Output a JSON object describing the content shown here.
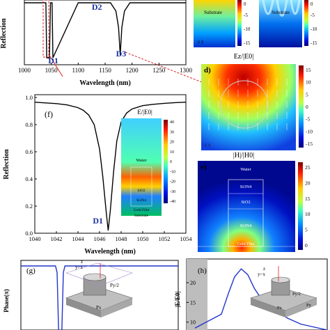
{
  "colors": {
    "curve": "#000000",
    "panel_a_marker": "#e02020",
    "label_blue": "#1a2fa0",
    "phase_curve": "#2233cc",
    "shade": "#bdbdbd",
    "substrate": "#8f8f8f"
  },
  "chart_data": [
    {
      "id": "a",
      "type": "line",
      "xlabel": "Wavelength (nm)",
      "ylabel": "Reflection",
      "xlim": [
        1000,
        1300
      ],
      "ylim": [
        0.0,
        1.0
      ],
      "xticks": [
        1000,
        1050,
        1100,
        1150,
        1200,
        1250,
        1300
      ],
      "yticks": [],
      "annotations": [
        {
          "text": "D1",
          "x": 1052
        },
        {
          "text": "D2",
          "x": 1133
        },
        {
          "text": "D3",
          "x": 1178
        }
      ],
      "x": [
        1000,
        1040,
        1041.5,
        1046.5,
        1048.5,
        1051.5,
        1053,
        1100,
        1160,
        1170,
        1175,
        1178,
        1181,
        1186,
        1196,
        1230,
        1300
      ],
      "y": [
        1.0,
        1.0,
        0.0,
        0.0,
        1.0,
        1.0,
        0.0,
        1.0,
        1.0,
        0.85,
        0.55,
        0.05,
        0.55,
        0.85,
        1.0,
        1.0,
        1.0
      ]
    },
    {
      "id": "f",
      "type": "line",
      "panel_label": "(f)",
      "xlabel": "Wavelength (nm)",
      "ylabel": "Reflection",
      "xlim": [
        1040,
        1054
      ],
      "ylim": [
        0.0,
        1.0
      ],
      "xticks": [
        1040,
        1042,
        1044,
        1046,
        1048,
        1050,
        1052,
        1054
      ],
      "yticks": [
        0.0,
        0.2,
        0.4,
        0.6,
        0.8,
        1.0
      ],
      "annotations": [
        {
          "text": "D1",
          "x": 1046.8,
          "y": 0.0
        }
      ],
      "x": [
        1040,
        1041,
        1042,
        1043,
        1044,
        1044.5,
        1045,
        1045.5,
        1046,
        1046.3,
        1046.6,
        1046.8,
        1047.0,
        1047.3,
        1047.6,
        1048,
        1048.5,
        1049,
        1050,
        1051,
        1052,
        1053,
        1054
      ],
      "y": [
        0.965,
        0.96,
        0.955,
        0.945,
        0.925,
        0.905,
        0.87,
        0.8,
        0.62,
        0.42,
        0.17,
        0.02,
        0.17,
        0.45,
        0.68,
        0.82,
        0.885,
        0.915,
        0.94,
        0.95,
        0.957,
        0.962,
        0.965
      ]
    },
    {
      "id": "g",
      "type": "line",
      "panel_label": "(g)",
      "ylabel": "Phase(π)",
      "x": [
        0,
        0.22,
        0.23,
        0.24,
        0.26,
        0.27,
        0.28,
        1.0
      ],
      "y": [
        1.0,
        1.0,
        0.9,
        0.0,
        0.0,
        0.9,
        1.0,
        1.0
      ]
    },
    {
      "id": "h",
      "type": "line",
      "panel_label": "(h)",
      "ylabel": "|E/E0|",
      "yticks": [
        10,
        15,
        20
      ],
      "ylim": [
        8,
        26
      ],
      "x": [
        0,
        0.2,
        0.25,
        0.3,
        0.35,
        0.4,
        0.45,
        0.5,
        0.6,
        0.7,
        0.8,
        1.0
      ],
      "y": [
        8.5,
        12,
        17,
        21.5,
        23.5,
        22,
        18.5,
        16,
        13,
        11,
        9.5,
        8
      ]
    }
  ],
  "maps": {
    "b_label": "Substrate",
    "c_label": "Substrate",
    "b_ticks": [
      "0",
      "-5",
      "-10",
      "-15"
    ],
    "c_ticks": [
      "0",
      "-5",
      "-10",
      "-15"
    ],
    "d": {
      "panel_label": "d)",
      "title": "Ez/|E0|",
      "ticks": [
        "15",
        "10",
        "5",
        "0",
        "-5",
        "-10",
        "-15"
      ]
    },
    "e": {
      "panel_label": "e)",
      "title": "|H|/|H0|",
      "ticks": [
        "25",
        "20",
        "15",
        "10",
        "5",
        "0"
      ],
      "layers": [
        "Water",
        "Si3N4",
        "SiO2",
        "Si3N4",
        "Gold Film"
      ]
    },
    "f_inset": {
      "title": "E/|E0|",
      "ticks": [
        "40",
        "30",
        "20",
        "10",
        "0",
        "-10",
        "-20",
        "-30",
        "-40"
      ],
      "layers": [
        "Water",
        "SiO2",
        "Si3N4",
        "Gold Film",
        "Substrate"
      ]
    }
  },
  "schematics": {
    "g": {
      "py_label": "Py/2",
      "px_label": "Px",
      "axis_z": "z",
      "axis_xy": "y⌐x"
    },
    "h": {
      "py_label": "Py/2",
      "py2_label": "Py",
      "px_label": "Px",
      "axis_z": "z",
      "axis_xy": "y⌐x"
    }
  }
}
